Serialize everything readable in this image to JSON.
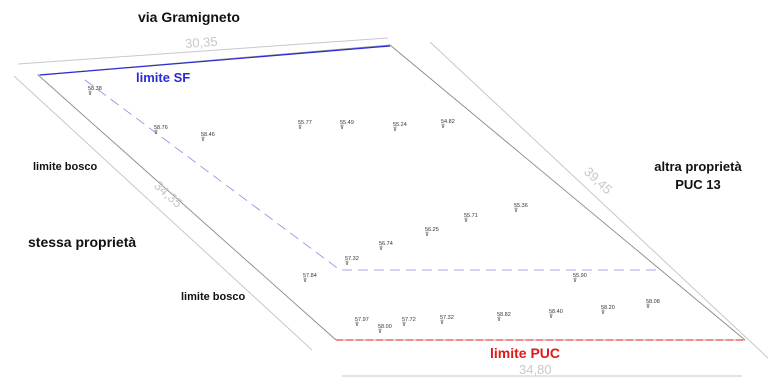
{
  "labels": {
    "street": "via Gramigneto",
    "limit_sf": "limite SF",
    "limit_puc": "limite PUC",
    "wood_limit_upper": "limite bosco",
    "wood_limit_lower": "limite bosco",
    "same_property": "stessa proprietà",
    "other_property_line1": "altra proprietà",
    "other_property_line2": "PUC 13"
  },
  "dimensions": {
    "top": "30,35",
    "left": "34,35",
    "right": "39,45",
    "bottom": "34,80"
  },
  "elevations": [
    "58.38",
    "58.76",
    "58.46",
    "55.77",
    "55.49",
    "55.24",
    "54.82",
    "55.36",
    "55.71",
    "56.25",
    "56.74",
    "57.32",
    "57.84",
    "55.90",
    "57.97",
    "58.00",
    "57.72",
    "57.32",
    "58.82",
    "58.40",
    "58.20",
    "58.08"
  ],
  "colors": {
    "outline": "#8a8a8a",
    "limit_sf": "#2b2bd6",
    "limit_sf_dash": "#8a8adf",
    "limit_puc": "#e01818",
    "dimension": "#c8c8c8",
    "label": "#111111"
  }
}
